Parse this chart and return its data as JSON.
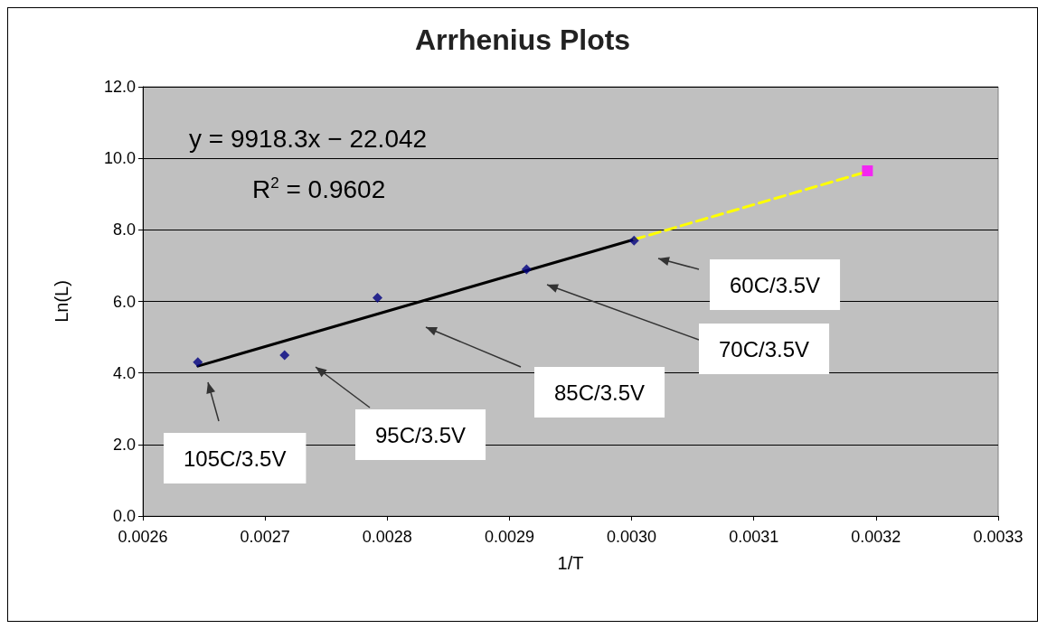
{
  "chart_data": {
    "type": "scatter",
    "title": "Arrhenius Plots",
    "xlabel": "1/T",
    "ylabel": "Ln(L)",
    "xlim": [
      0.0026,
      0.0033
    ],
    "xticks": [
      {
        "value": 0.0026,
        "label": "0.0026"
      },
      {
        "value": 0.0027,
        "label": "0.0027"
      },
      {
        "value": 0.0028,
        "label": "0.0028"
      },
      {
        "value": 0.0029,
        "label": "0.0029"
      },
      {
        "value": 0.003,
        "label": "0.0030"
      },
      {
        "value": 0.0031,
        "label": "0.0031"
      },
      {
        "value": 0.0032,
        "label": "0.0032"
      },
      {
        "value": 0.0033,
        "label": "0.0033"
      }
    ],
    "ylim": [
      0,
      12
    ],
    "yticks": [
      {
        "value": 0,
        "label": "0.0"
      },
      {
        "value": 2,
        "label": "2.0"
      },
      {
        "value": 4,
        "label": "4.0"
      },
      {
        "value": 6,
        "label": "6.0"
      },
      {
        "value": 8,
        "label": "8.0"
      },
      {
        "value": 10,
        "label": "10.0"
      },
      {
        "value": 12,
        "label": "12.0"
      }
    ],
    "grid": "y",
    "series": [
      {
        "type": "line",
        "color": "#000000",
        "marker": "none",
        "line_style": "solid",
        "x": [
          0.002645,
          0.003002
        ],
        "values": [
          4.19,
          7.73
        ]
      },
      {
        "type": "line",
        "color": "#ffff00",
        "marker": "none",
        "line_style": "dashed",
        "x": [
          0.003002,
          0.003193
        ],
        "values": [
          7.73,
          9.63
        ]
      },
      {
        "type": "scatter",
        "color": "#000080",
        "marker": "diamond",
        "x": [
          0.002645,
          0.002716,
          0.002792,
          0.002914,
          0.003002
        ],
        "values": [
          4.3,
          4.5,
          6.1,
          6.9,
          7.7
        ]
      },
      {
        "type": "scatter",
        "color": "#ff00ff",
        "marker": "square",
        "x": [
          0.003193
        ],
        "values": [
          9.65
        ]
      }
    ],
    "annotations": [
      "y = 9918.3x − 22.042",
      "R$^{2}$ = 0.9602",
      "105C/3.5V",
      "95C/3.5V",
      "85C/3.5V",
      "70C/3.5V",
      "60C/3.5V"
    ]
  }
}
